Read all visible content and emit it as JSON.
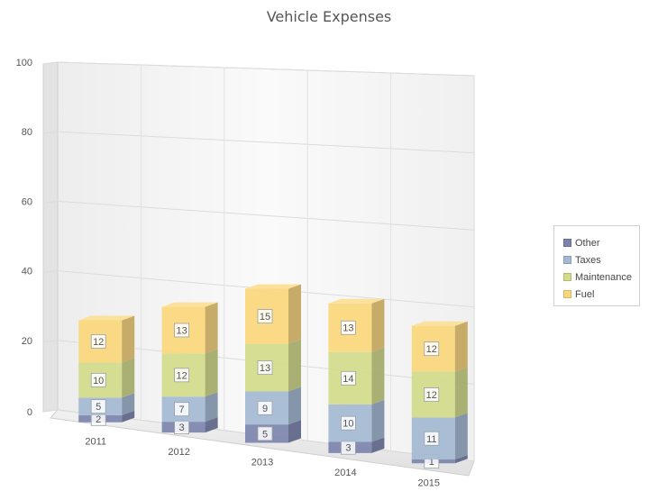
{
  "chart_data": {
    "type": "bar",
    "stacked": true,
    "three_d": true,
    "title": "Vehicle Expenses",
    "categories": [
      "2011",
      "2012",
      "2013",
      "2014",
      "2015"
    ],
    "series": [
      {
        "name": "Other",
        "values": [
          2,
          3,
          5,
          3,
          1
        ],
        "color": "#7c84ae"
      },
      {
        "name": "Taxes",
        "values": [
          5,
          7,
          9,
          10,
          11
        ],
        "color": "#a3b9d3"
      },
      {
        "name": "Maintenance",
        "values": [
          10,
          12,
          13,
          14,
          12
        ],
        "color": "#d3db8a"
      },
      {
        "name": "Fuel",
        "values": [
          12,
          13,
          15,
          13,
          12
        ],
        "color": "#fbd77c"
      }
    ],
    "ylim": [
      0,
      100
    ],
    "yticks": [
      "0",
      "20",
      "40",
      "60",
      "80",
      "100"
    ],
    "grid": true,
    "legend_position": "right"
  }
}
